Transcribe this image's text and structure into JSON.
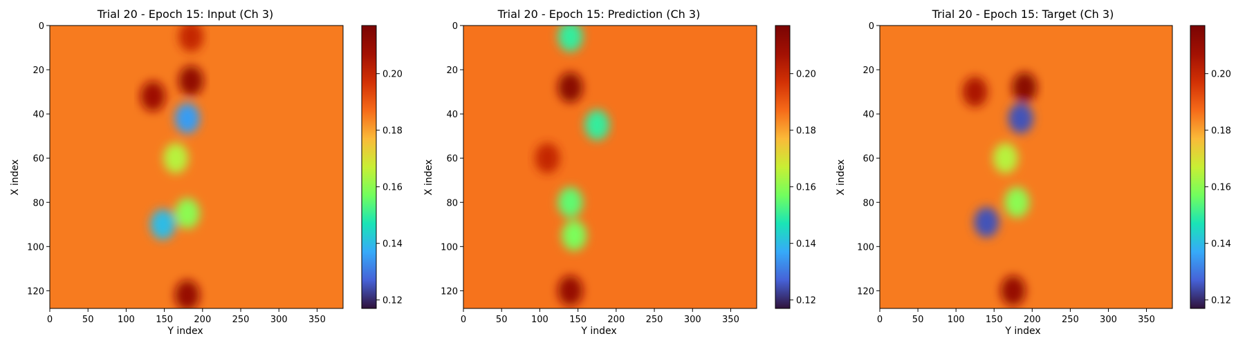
{
  "chart_data": [
    {
      "type": "heatmap",
      "title": "Trial 20 - Epoch 15: Input (Ch 3)",
      "xlabel": "Y index",
      "ylabel": "X index",
      "xlim": [
        0,
        384
      ],
      "ylim": [
        128,
        0
      ],
      "xticks": [
        0,
        50,
        100,
        150,
        200,
        250,
        300,
        350
      ],
      "yticks": [
        0,
        20,
        40,
        60,
        80,
        100,
        120
      ],
      "colormap": "turbo",
      "colorbar": {
        "min": 0.117,
        "max": 0.217,
        "ticks": [
          0.12,
          0.14,
          0.16,
          0.18,
          0.2
        ]
      },
      "background_value": 0.185,
      "features": [
        {
          "y": 25,
          "x": 185,
          "value": 0.211
        },
        {
          "y": 32,
          "x": 135,
          "value": 0.208
        },
        {
          "y": 42,
          "x": 180,
          "value": 0.135
        },
        {
          "y": 60,
          "x": 165,
          "value": 0.165
        },
        {
          "y": 90,
          "x": 148,
          "value": 0.14
        },
        {
          "y": 85,
          "x": 180,
          "value": 0.16
        },
        {
          "y": 122,
          "x": 180,
          "value": 0.21
        },
        {
          "y": 5,
          "x": 185,
          "value": 0.2
        }
      ]
    },
    {
      "type": "heatmap",
      "title": "Trial 20 - Epoch 15: Prediction (Ch 3)",
      "xlabel": "Y index",
      "ylabel": "X index",
      "xlim": [
        0,
        384
      ],
      "ylim": [
        128,
        0
      ],
      "xticks": [
        0,
        50,
        100,
        150,
        200,
        250,
        300,
        350
      ],
      "yticks": [
        0,
        20,
        40,
        60,
        80,
        100,
        120
      ],
      "colormap": "turbo",
      "colorbar": {
        "min": 0.117,
        "max": 0.217,
        "ticks": [
          0.12,
          0.14,
          0.16,
          0.18,
          0.2
        ]
      },
      "background_value": 0.186,
      "features": [
        {
          "y": 28,
          "x": 140,
          "value": 0.213
        },
        {
          "y": 5,
          "x": 140,
          "value": 0.15
        },
        {
          "y": 45,
          "x": 175,
          "value": 0.15
        },
        {
          "y": 80,
          "x": 140,
          "value": 0.155
        },
        {
          "y": 95,
          "x": 145,
          "value": 0.158
        },
        {
          "y": 120,
          "x": 140,
          "value": 0.21
        },
        {
          "y": 60,
          "x": 110,
          "value": 0.2
        }
      ]
    },
    {
      "type": "heatmap",
      "title": "Trial 20 - Epoch 15: Target (Ch 3)",
      "xlabel": "Y index",
      "ylabel": "X index",
      "xlim": [
        0,
        384
      ],
      "ylim": [
        128,
        0
      ],
      "xticks": [
        0,
        50,
        100,
        150,
        200,
        250,
        300,
        350
      ],
      "yticks": [
        0,
        20,
        40,
        60,
        80,
        100,
        120
      ],
      "colormap": "turbo",
      "colorbar": {
        "min": 0.117,
        "max": 0.217,
        "ticks": [
          0.12,
          0.14,
          0.16,
          0.18,
          0.2
        ]
      },
      "background_value": 0.185,
      "features": [
        {
          "y": 28,
          "x": 190,
          "value": 0.213
        },
        {
          "y": 30,
          "x": 125,
          "value": 0.205
        },
        {
          "y": 42,
          "x": 185,
          "value": 0.125
        },
        {
          "y": 60,
          "x": 165,
          "value": 0.165
        },
        {
          "y": 89,
          "x": 140,
          "value": 0.125
        },
        {
          "y": 80,
          "x": 180,
          "value": 0.16
        },
        {
          "y": 120,
          "x": 175,
          "value": 0.21
        }
      ]
    }
  ]
}
